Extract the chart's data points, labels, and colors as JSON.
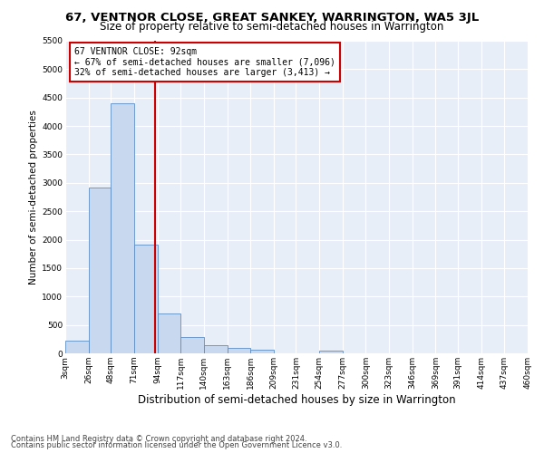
{
  "title": "67, VENTNOR CLOSE, GREAT SANKEY, WARRINGTON, WA5 3JL",
  "subtitle": "Size of property relative to semi-detached houses in Warrington",
  "xlabel": "Distribution of semi-detached houses by size in Warrington",
  "ylabel": "Number of semi-detached properties",
  "footer1": "Contains HM Land Registry data © Crown copyright and database right 2024.",
  "footer2": "Contains public sector information licensed under the Open Government Licence v3.0.",
  "annotation_title": "67 VENTNOR CLOSE: 92sqm",
  "annotation_line1": "← 67% of semi-detached houses are smaller (7,096)",
  "annotation_line2": "32% of semi-detached houses are larger (3,413) →",
  "property_size": 92,
  "bar_color": "#c8d9ef",
  "bar_edge_color": "#5b8dc8",
  "vline_color": "#cc0000",
  "annotation_box_color": "#ffffff",
  "annotation_box_edge": "#cc0000",
  "plot_bg_color": "#e8eef8",
  "fig_bg_color": "#ffffff",
  "grid_color": "#ffffff",
  "bin_edges": [
    3,
    26,
    48,
    71,
    94,
    117,
    140,
    163,
    186,
    209,
    231,
    254,
    277,
    300,
    323,
    346,
    369,
    391,
    414,
    437,
    460
  ],
  "bar_heights": [
    220,
    2920,
    4400,
    1920,
    700,
    290,
    150,
    100,
    60,
    0,
    0,
    50,
    0,
    0,
    0,
    0,
    0,
    0,
    0,
    0
  ],
  "ylim": [
    0,
    5500
  ],
  "yticks": [
    0,
    500,
    1000,
    1500,
    2000,
    2500,
    3000,
    3500,
    4000,
    4500,
    5000,
    5500
  ],
  "title_fontsize": 9.5,
  "subtitle_fontsize": 8.5,
  "ylabel_fontsize": 7.5,
  "xlabel_fontsize": 8.5,
  "tick_fontsize": 6.5,
  "annot_fontsize": 7,
  "footer_fontsize": 6
}
